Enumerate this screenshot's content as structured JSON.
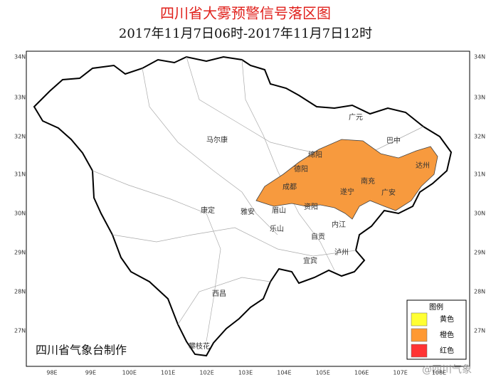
{
  "header": {
    "title": "四川省大雾预警信号落区图",
    "subtitle": "2017年11月7日06时-2017年11月7日12时"
  },
  "lat_labels": [
    "34N",
    "33N",
    "32N",
    "31N",
    "30N",
    "29N",
    "28N",
    "27N"
  ],
  "lon_labels": [
    "98E",
    "99E",
    "100E",
    "101E",
    "102E",
    "103E",
    "104E",
    "105E",
    "106E",
    "107E",
    "108E"
  ],
  "cities": [
    "广元",
    "巴中",
    "绵阳",
    "德阳",
    "达州",
    "成都",
    "南充",
    "遂宁",
    "广安",
    "雅安",
    "眉山",
    "资阳",
    "康定",
    "内江",
    "乐山",
    "自贡",
    "泸州",
    "宜宾",
    "西昌",
    "攀枝花",
    "马尔康"
  ],
  "legend": {
    "title": "图例",
    "items": [
      {
        "label": "黄色",
        "color": "#ffff33"
      },
      {
        "label": "橙色",
        "color": "#ff9933"
      },
      {
        "label": "红色",
        "color": "#ff3333"
      }
    ]
  },
  "credit": "四川省气象台制作",
  "watermark": "@四川气象"
}
